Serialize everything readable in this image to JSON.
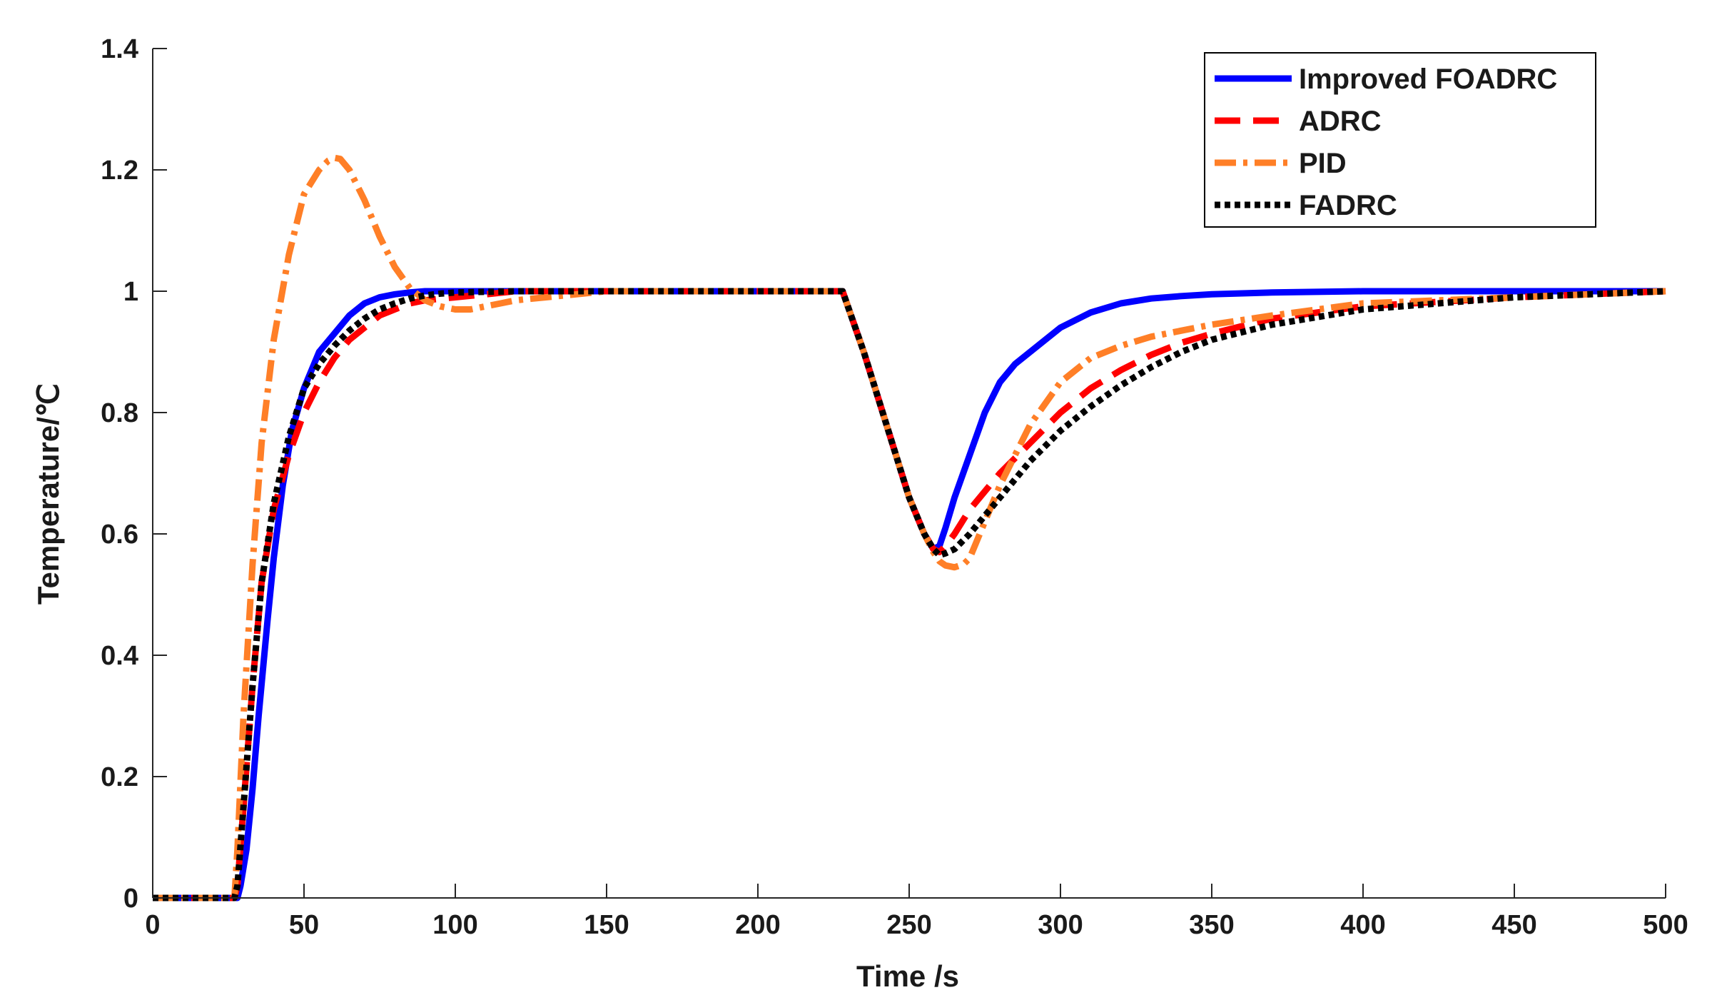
{
  "chart_data": {
    "type": "line",
    "xlabel": "Time /s",
    "ylabel": "Temperature/℃",
    "xlim": [
      0,
      500
    ],
    "ylim": [
      0,
      1.4
    ],
    "xticks": [
      "0",
      "50",
      "100",
      "150",
      "200",
      "250",
      "300",
      "350",
      "400",
      "450",
      "500"
    ],
    "yticks": [
      "0",
      "0.2",
      "0.4",
      "0.6",
      "0.8",
      "1",
      "1.2",
      "1.4"
    ],
    "grid": false,
    "legend_position": "top-right",
    "series": [
      {
        "name": "Improved FOADRC",
        "color": "#0000ff",
        "style": "solid",
        "x": [
          0,
          28,
          29,
          31,
          33,
          35,
          38,
          40,
          43,
          46,
          50,
          55,
          60,
          65,
          70,
          75,
          80,
          85,
          90,
          100,
          120,
          150,
          200,
          228,
          235,
          240,
          245,
          250,
          255,
          258,
          260,
          262,
          265,
          270,
          275,
          280,
          285,
          290,
          300,
          310,
          320,
          330,
          340,
          350,
          370,
          400,
          450,
          500
        ],
        "y": [
          0,
          0,
          0.02,
          0.08,
          0.18,
          0.3,
          0.46,
          0.56,
          0.68,
          0.77,
          0.84,
          0.9,
          0.93,
          0.96,
          0.98,
          0.99,
          0.995,
          0.998,
          1.0,
          1.0,
          1.0,
          1.0,
          1.0,
          1.0,
          0.9,
          0.82,
          0.74,
          0.66,
          0.6,
          0.575,
          0.58,
          0.61,
          0.66,
          0.73,
          0.8,
          0.85,
          0.88,
          0.9,
          0.94,
          0.965,
          0.98,
          0.988,
          0.992,
          0.995,
          0.998,
          1.0,
          1.0,
          1.0
        ]
      },
      {
        "name": "ADRC",
        "color": "#ff0000",
        "style": "dashed",
        "x": [
          0,
          27,
          28,
          30,
          33,
          36,
          40,
          45,
          50,
          55,
          60,
          65,
          70,
          75,
          80,
          85,
          90,
          100,
          110,
          120,
          150,
          200,
          228,
          235,
          240,
          245,
          250,
          255,
          258,
          260,
          262,
          265,
          270,
          280,
          290,
          300,
          310,
          320,
          330,
          340,
          350,
          370,
          400,
          450,
          500
        ],
        "y": [
          0,
          0,
          0.02,
          0.15,
          0.35,
          0.52,
          0.64,
          0.73,
          0.8,
          0.85,
          0.89,
          0.92,
          0.94,
          0.96,
          0.97,
          0.98,
          0.985,
          0.99,
          0.995,
          1.0,
          1.0,
          1.0,
          1.0,
          0.9,
          0.82,
          0.74,
          0.66,
          0.6,
          0.575,
          0.57,
          0.58,
          0.6,
          0.64,
          0.7,
          0.75,
          0.8,
          0.84,
          0.87,
          0.895,
          0.915,
          0.93,
          0.955,
          0.975,
          0.99,
          1.0
        ]
      },
      {
        "name": "PID",
        "color": "#ff7f27",
        "style": "dash-dot",
        "x": [
          0,
          27,
          28,
          30,
          33,
          36,
          40,
          45,
          50,
          55,
          58,
          60,
          62,
          65,
          70,
          75,
          80,
          85,
          90,
          95,
          100,
          105,
          110,
          115,
          120,
          130,
          140,
          150,
          160,
          180,
          200,
          228,
          235,
          240,
          245,
          250,
          255,
          258,
          260,
          262,
          265,
          268,
          270,
          275,
          280,
          285,
          290,
          300,
          310,
          320,
          330,
          340,
          350,
          370,
          400,
          450,
          500
        ],
        "y": [
          0,
          0,
          0.08,
          0.3,
          0.55,
          0.75,
          0.92,
          1.06,
          1.16,
          1.2,
          1.215,
          1.22,
          1.218,
          1.2,
          1.15,
          1.09,
          1.04,
          1.005,
          0.985,
          0.975,
          0.97,
          0.97,
          0.975,
          0.98,
          0.985,
          0.99,
          0.995,
          1.0,
          1.0,
          1.0,
          1.0,
          1.0,
          0.9,
          0.82,
          0.74,
          0.66,
          0.6,
          0.57,
          0.555,
          0.548,
          0.545,
          0.55,
          0.56,
          0.62,
          0.68,
          0.73,
          0.78,
          0.85,
          0.89,
          0.91,
          0.925,
          0.935,
          0.945,
          0.96,
          0.98,
          0.99,
          1.0
        ]
      },
      {
        "name": "FADRC",
        "color": "#000000",
        "style": "dotted",
        "x": [
          0,
          27,
          28,
          30,
          33,
          36,
          40,
          45,
          50,
          55,
          60,
          65,
          70,
          75,
          80,
          85,
          90,
          95,
          100,
          120,
          150,
          200,
          228,
          235,
          240,
          245,
          250,
          255,
          258,
          260,
          262,
          265,
          270,
          280,
          290,
          300,
          310,
          320,
          330,
          340,
          350,
          370,
          400,
          450,
          500
        ],
        "y": [
          0,
          0,
          0.02,
          0.15,
          0.35,
          0.52,
          0.65,
          0.76,
          0.84,
          0.88,
          0.91,
          0.935,
          0.955,
          0.97,
          0.98,
          0.988,
          0.993,
          0.996,
          0.998,
          1.0,
          1.0,
          1.0,
          1.0,
          0.9,
          0.82,
          0.74,
          0.66,
          0.6,
          0.575,
          0.565,
          0.568,
          0.575,
          0.6,
          0.66,
          0.72,
          0.77,
          0.81,
          0.845,
          0.875,
          0.9,
          0.92,
          0.945,
          0.97,
          0.99,
          1.0
        ]
      }
    ]
  }
}
